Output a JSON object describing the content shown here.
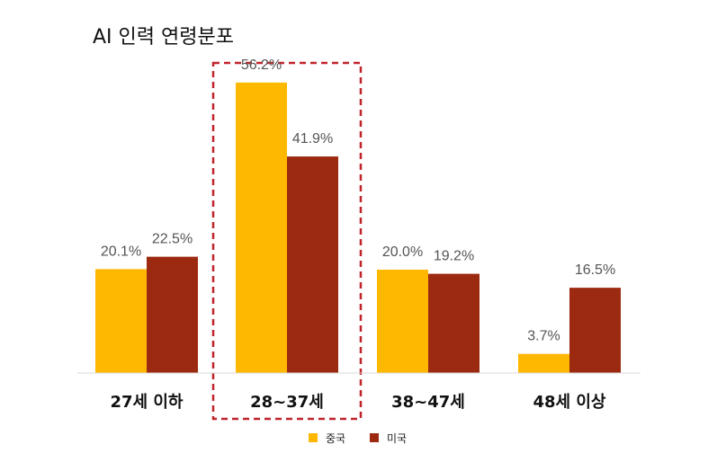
{
  "chart_data": {
    "type": "bar",
    "title": "AI 인력 연령분포",
    "categories": [
      "27세 이하",
      "28~37세",
      "38~47세",
      "48세 이상"
    ],
    "series": [
      {
        "name": "중국",
        "color": "#FFB800",
        "values": [
          20.1,
          56.2,
          20.0,
          3.7
        ],
        "labels": [
          "20.1%",
          "56.2%",
          "20.0%",
          "3.7%"
        ]
      },
      {
        "name": "미국",
        "color": "#9C2A10",
        "values": [
          22.5,
          41.9,
          19.2,
          16.5
        ],
        "labels": [
          "22.5%",
          "41.9%",
          "19.2%",
          "16.5%"
        ]
      }
    ],
    "ylim": [
      0,
      60
    ],
    "xlabel": "",
    "ylabel": "",
    "legend": "bottom-center",
    "highlight": {
      "category": "28~37세",
      "color": "#C0242B",
      "style": "dashed"
    }
  }
}
